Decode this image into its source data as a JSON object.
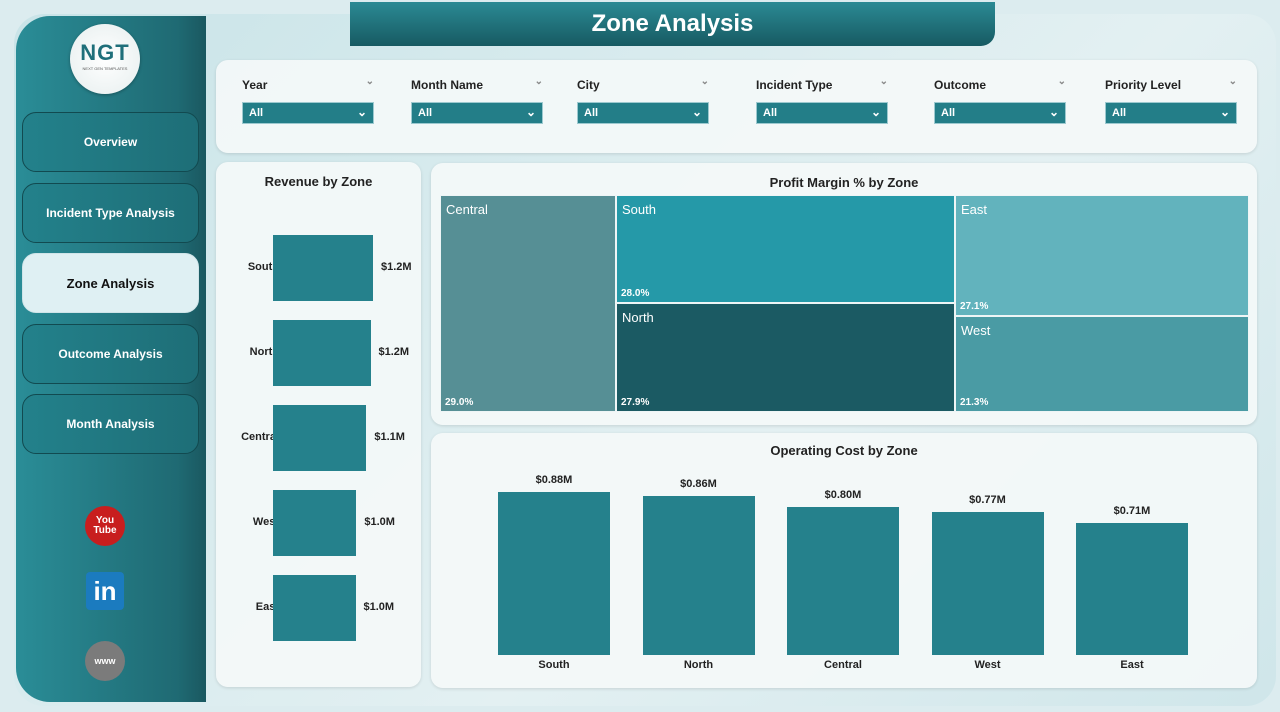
{
  "page_title": "Zone Analysis",
  "logo": {
    "text": "NGT",
    "subtext": "NEXT GEN TEMPLATES"
  },
  "nav": [
    {
      "label": "Overview"
    },
    {
      "label": "Incident Type Analysis"
    },
    {
      "label": "Zone Analysis",
      "active": true
    },
    {
      "label": "Outcome Analysis"
    },
    {
      "label": "Month Analysis"
    }
  ],
  "social": {
    "youtube": {
      "l1": "You",
      "l2": "Tube"
    },
    "linkedin": "in",
    "web": "www"
  },
  "filters": [
    {
      "label": "Year",
      "value": "All"
    },
    {
      "label": "Month Name",
      "value": "All"
    },
    {
      "label": "City",
      "value": "All"
    },
    {
      "label": "Incident Type",
      "value": "All"
    },
    {
      "label": "Outcome",
      "value": "All"
    },
    {
      "label": "Priority Level",
      "value": "All"
    }
  ],
  "chart_data": [
    {
      "type": "bar",
      "orientation": "horizontal",
      "title": "Revenue by Zone",
      "categories": [
        "South",
        "North",
        "Central",
        "West",
        "East"
      ],
      "values": [
        1.2,
        1.17,
        1.12,
        1.0,
        0.99
      ],
      "labels": [
        "$1.2M",
        "$1.2M",
        "$1.1M",
        "$1.0M",
        "$1.0M"
      ],
      "unit": "$M",
      "color": "#25818c"
    },
    {
      "type": "treemap",
      "title": "Profit Margin % by Zone",
      "categories": [
        "Central",
        "South",
        "North",
        "East",
        "West"
      ],
      "values": [
        29.0,
        28.0,
        27.9,
        27.1,
        21.3
      ],
      "labels": [
        "29.0%",
        "28.0%",
        "27.9%",
        "27.1%",
        "21.3%"
      ],
      "colors": [
        "#568f95",
        "#2599a8",
        "#1b5a63",
        "#62b3bd",
        "#4a9ba4"
      ]
    },
    {
      "type": "bar",
      "title": "Operating Cost by Zone",
      "categories": [
        "South",
        "North",
        "Central",
        "West",
        "East"
      ],
      "values": [
        0.88,
        0.86,
        0.8,
        0.77,
        0.71
      ],
      "labels": [
        "$0.88M",
        "$0.86M",
        "$0.80M",
        "$0.77M",
        "$0.71M"
      ],
      "unit": "$M",
      "color": "#25818c"
    }
  ]
}
